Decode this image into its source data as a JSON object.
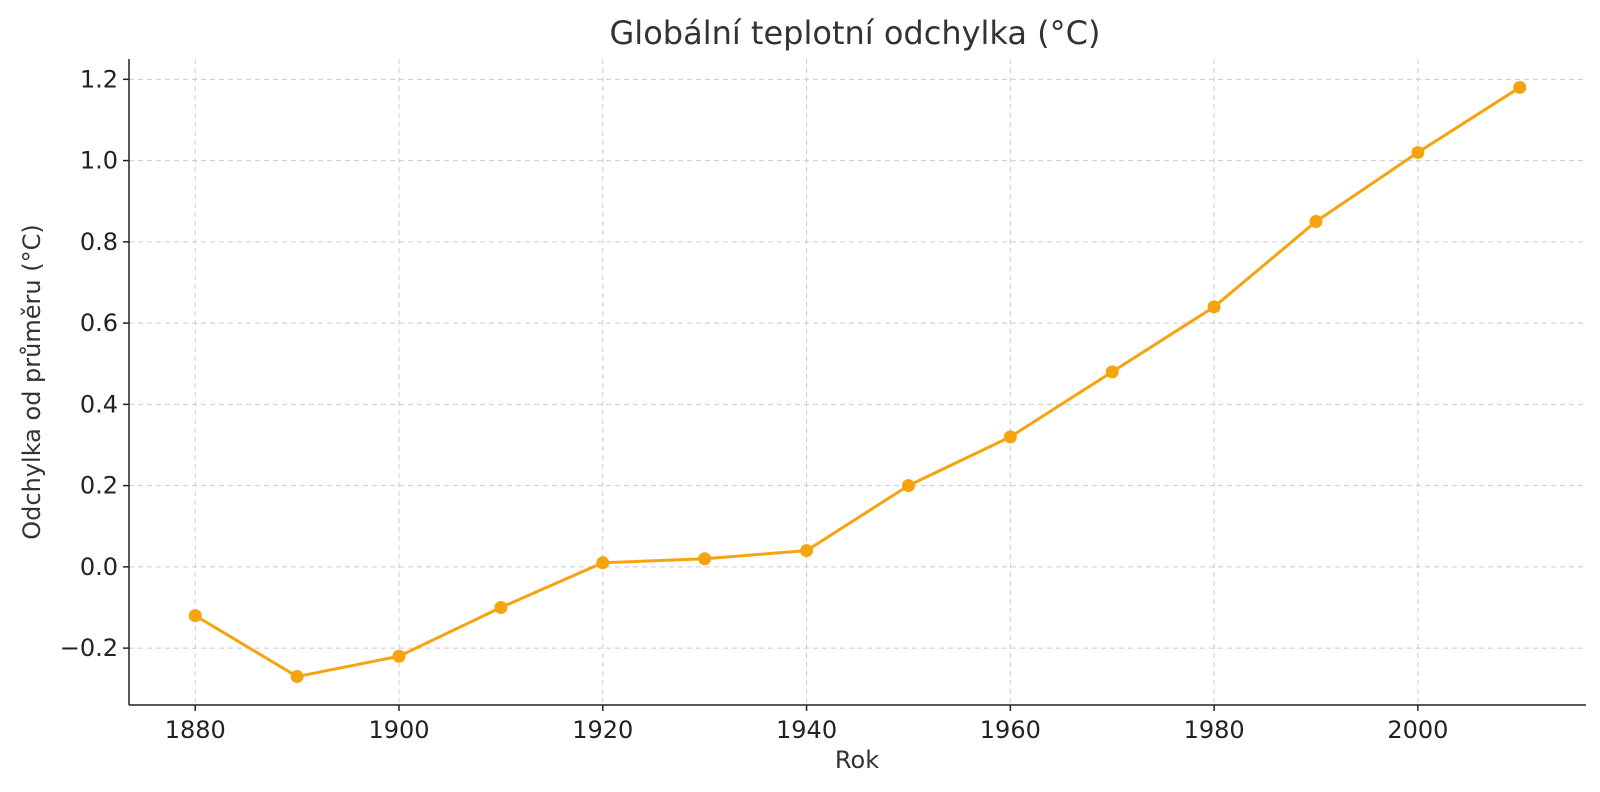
{
  "chart_data": {
    "type": "line",
    "title": "Globální teplotní odchylka (°C)",
    "xlabel": "Rok",
    "ylabel": "Odchylka od průměru (°C)",
    "x": [
      1880,
      1890,
      1900,
      1910,
      1920,
      1930,
      1940,
      1950,
      1960,
      1970,
      1980,
      1990,
      2000,
      2010
    ],
    "series": [
      {
        "values": [
          -0.12,
          -0.27,
          -0.22,
          -0.1,
          0.01,
          0.02,
          0.04,
          0.2,
          0.32,
          0.48,
          0.64,
          0.85,
          1.02,
          1.18
        ],
        "color": "#f5a30f"
      }
    ],
    "xticks": [
      "1880",
      "1900",
      "1920",
      "1940",
      "1960",
      "1980",
      "2000"
    ],
    "yticks": [
      "1.2",
      "1.0",
      "0.8",
      "0.6",
      "0.4",
      "0.2",
      "0.0",
      "−0.2"
    ],
    "xlim": [
      1873.5,
      2016.5
    ],
    "ylim": [
      -0.34,
      1.25
    ],
    "grid": true,
    "legend": "none"
  }
}
